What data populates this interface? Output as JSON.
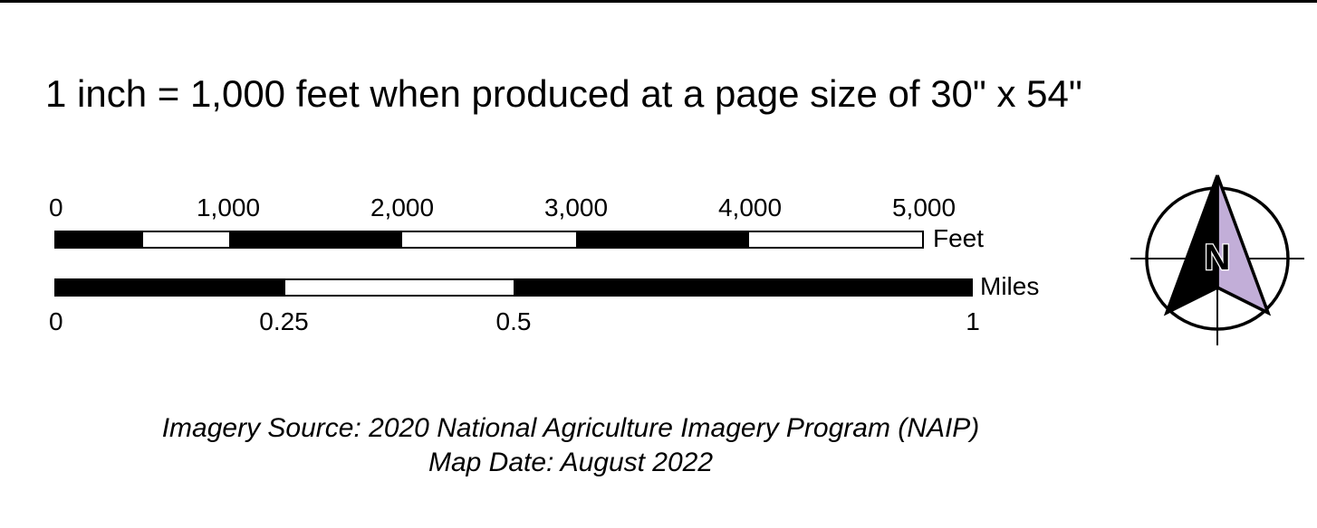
{
  "scale_statement": "1 inch = 1,000 feet when produced at a page size of 30\" x 54\"",
  "feet_scale": {
    "unit": "Feet",
    "ticks": [
      "0",
      "1,000",
      "2,000",
      "3,000",
      "4,000",
      "5,000"
    ],
    "tick_values": [
      0,
      1000,
      2000,
      3000,
      4000,
      5000
    ],
    "max": 5000,
    "segments": [
      {
        "from": 0,
        "to": 500,
        "fill": "black"
      },
      {
        "from": 500,
        "to": 1000,
        "fill": "white"
      },
      {
        "from": 1000,
        "to": 2000,
        "fill": "black"
      },
      {
        "from": 2000,
        "to": 3000,
        "fill": "white"
      },
      {
        "from": 3000,
        "to": 4000,
        "fill": "black"
      },
      {
        "from": 4000,
        "to": 5000,
        "fill": "white"
      }
    ]
  },
  "miles_scale": {
    "unit": "Miles",
    "ticks": [
      "0",
      "0.25",
      "0.5",
      "1"
    ],
    "tick_values": [
      0,
      0.25,
      0.5,
      1
    ],
    "max": 1,
    "segments": [
      {
        "from": 0,
        "to": 0.25,
        "fill": "black"
      },
      {
        "from": 0.25,
        "to": 0.5,
        "fill": "white"
      },
      {
        "from": 0.5,
        "to": 1,
        "fill": "black"
      }
    ]
  },
  "north_arrow": {
    "label": "N",
    "icon": "north-arrow-icon",
    "colors": {
      "dark_half": "#000000",
      "light_half": "#c2aed8",
      "outline": "#000000"
    }
  },
  "credits": {
    "imagery_source": "Imagery Source: 2020 National Agriculture Imagery Program (NAIP)",
    "map_date": "Map Date: August 2022"
  }
}
